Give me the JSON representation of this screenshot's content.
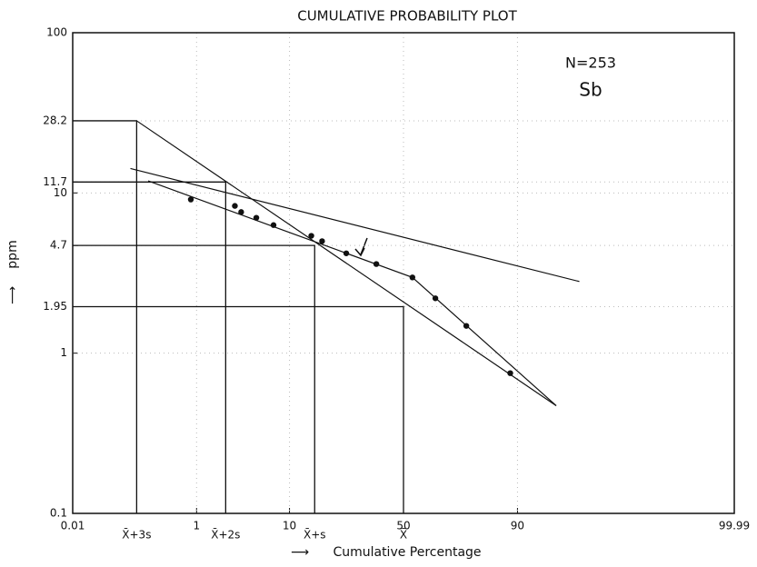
{
  "chart_data": {
    "type": "scatter",
    "title": "CUMULATIVE PROBABILITY PLOT",
    "xlabel": "Cumulative Percentage",
    "ylabel": "ppm",
    "annotations": [
      "N=253",
      "Sb"
    ],
    "xscale": "probability",
    "yscale": "log",
    "grid": true,
    "color": "#111111",
    "xlim": [
      0.01,
      99.99
    ],
    "ylim": [
      0.1,
      100
    ],
    "xticks": [
      0.01,
      1,
      10,
      50,
      90,
      99.99
    ],
    "yticks": [
      0.1,
      1,
      1.95,
      4.7,
      10,
      11.7,
      28.2,
      100
    ],
    "x": [
      0.84,
      2.9,
      3.4,
      4.9,
      7.2,
      15,
      18,
      26,
      38,
      54,
      64,
      76,
      88.5
    ],
    "values": [
      9.1,
      8.3,
      7.6,
      7.0,
      6.3,
      5.4,
      5.0,
      4.2,
      3.6,
      2.97,
      2.2,
      1.48,
      0.75
    ],
    "guides": [
      {
        "label": "X̄+3s",
        "x": 0.135,
        "y": 28.2
      },
      {
        "label": "X̄+2s",
        "x": 2.28,
        "y": 11.7
      },
      {
        "label": "X̄+s",
        "x": 15.9,
        "y": 4.7
      },
      {
        "label": "X̄",
        "x": 50,
        "y": 1.95
      }
    ],
    "lines": [
      {
        "x": [
          0.135,
          95.7
        ],
        "y": [
          28.2,
          0.47
        ]
      },
      {
        "x": [
          0.107,
          97.6
        ],
        "y": [
          14.2,
          2.8
        ]
      },
      {
        "x": [
          0.205,
          54,
          95.7
        ],
        "y": [
          11.9,
          2.97,
          0.47
        ]
      }
    ]
  }
}
